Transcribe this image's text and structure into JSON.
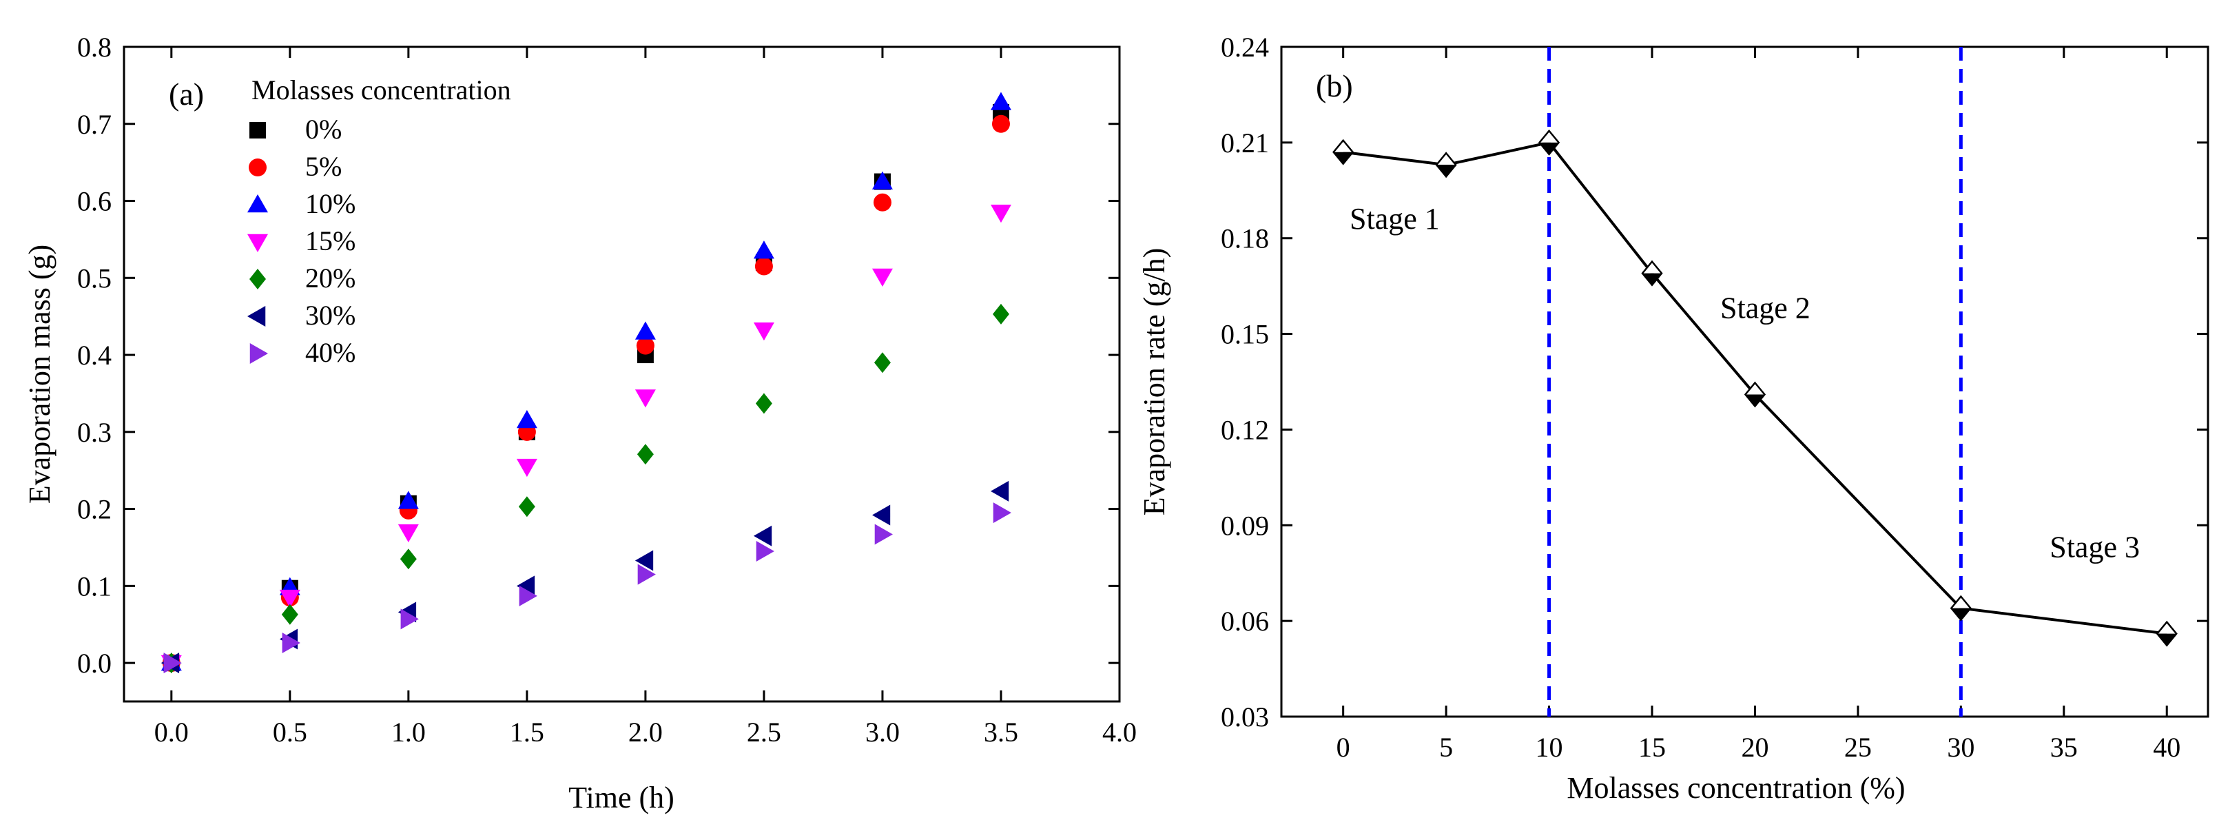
{
  "chart_data": [
    {
      "type": "scatter",
      "panel_label": "(a)",
      "xlabel": "Time (h)",
      "ylabel": "Evaporation mass (g)",
      "xlim": [
        -0.2,
        4.0
      ],
      "ylim": [
        -0.05,
        0.8
      ],
      "xticks": [
        0.0,
        0.5,
        1.0,
        1.5,
        2.0,
        2.5,
        3.0,
        3.5,
        4.0
      ],
      "xtick_labels": [
        "0.0",
        "0.5",
        "1.0",
        "1.5",
        "2.0",
        "2.5",
        "3.0",
        "3.5",
        "4.0"
      ],
      "yticks": [
        0.0,
        0.1,
        0.2,
        0.3,
        0.4,
        0.5,
        0.6,
        0.7,
        0.8
      ],
      "ytick_labels": [
        "0.0",
        "0.1",
        "0.2",
        "0.3",
        "0.4",
        "0.5",
        "0.6",
        "0.7",
        "0.8"
      ],
      "legend_title": "Molasses concentration",
      "legend_position": "top-left",
      "x": [
        0.0,
        0.5,
        1.0,
        1.5,
        2.0,
        2.5,
        3.0,
        3.5
      ],
      "series": [
        {
          "name": "0%",
          "marker": "square",
          "color": "#000000",
          "values": [
            0.0,
            0.097,
            0.207,
            0.3,
            0.4,
            0.52,
            0.625,
            0.715
          ]
        },
        {
          "name": "5%",
          "marker": "circle",
          "color": "#ff0000",
          "values": [
            0.0,
            0.085,
            0.198,
            0.3,
            0.412,
            0.515,
            0.598,
            0.7
          ]
        },
        {
          "name": "10%",
          "marker": "triangle-up",
          "color": "#0000ff",
          "values": [
            0.0,
            0.098,
            0.21,
            0.315,
            0.43,
            0.535,
            0.625,
            0.728
          ]
        },
        {
          "name": "15%",
          "marker": "triangle-down",
          "color": "#ff00ff",
          "values": [
            0.0,
            0.085,
            0.17,
            0.255,
            0.345,
            0.432,
            0.502,
            0.585
          ]
        },
        {
          "name": "20%",
          "marker": "diamond",
          "color": "#008000",
          "values": [
            0.0,
            0.063,
            0.135,
            0.203,
            0.271,
            0.337,
            0.39,
            0.453
          ]
        },
        {
          "name": "30%",
          "marker": "triangle-left",
          "color": "#000080",
          "values": [
            0.0,
            0.031,
            0.066,
            0.1,
            0.133,
            0.165,
            0.192,
            0.223
          ]
        },
        {
          "name": "40%",
          "marker": "triangle-right",
          "color": "#8a2be2",
          "values": [
            0.0,
            0.026,
            0.057,
            0.087,
            0.115,
            0.145,
            0.167,
            0.195
          ]
        }
      ]
    },
    {
      "type": "line",
      "panel_label": "(b)",
      "xlabel": "Molasses concentration (%)",
      "ylabel": "Evaporation rate (g/h)",
      "xlim": [
        -3,
        42
      ],
      "ylim": [
        0.03,
        0.24
      ],
      "xticks": [
        0,
        5,
        10,
        15,
        20,
        25,
        30,
        35,
        40
      ],
      "xtick_labels": [
        "0",
        "5",
        "10",
        "15",
        "20",
        "25",
        "30",
        "35",
        "40"
      ],
      "yticks": [
        0.03,
        0.06,
        0.09,
        0.12,
        0.15,
        0.18,
        0.21,
        0.24
      ],
      "ytick_labels": [
        "0.03",
        "0.06",
        "0.09",
        "0.12",
        "0.15",
        "0.18",
        "0.21",
        "0.24"
      ],
      "x": [
        0,
        5,
        10,
        15,
        20,
        30,
        40
      ],
      "values": [
        0.207,
        0.203,
        0.21,
        0.169,
        0.131,
        0.064,
        0.056
      ],
      "marker": "half-filled diamond",
      "line_color": "#000000",
      "divider_lines": [
        10,
        30
      ],
      "divider_color": "#0000ff",
      "annotations": [
        {
          "text": "Stage 1",
          "x": 2.5,
          "y": 0.183
        },
        {
          "text": "Stage 2",
          "x": 20.5,
          "y": 0.155
        },
        {
          "text": "Stage 3",
          "x": 36.5,
          "y": 0.08
        }
      ]
    }
  ]
}
